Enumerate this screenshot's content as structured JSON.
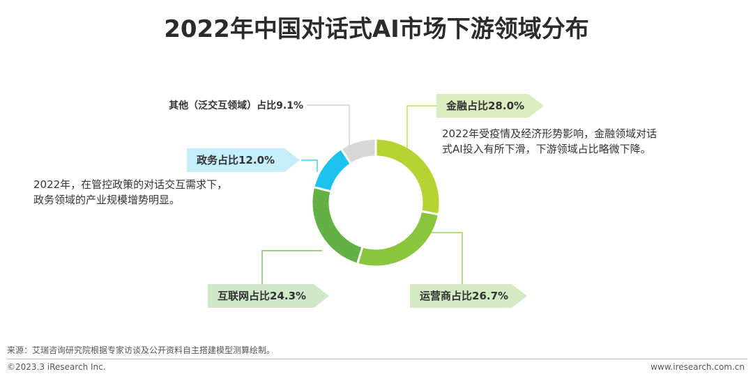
{
  "title": "2022年中国对话式AI市场下游领域分布",
  "chart_data": {
    "type": "pie",
    "donut": true,
    "title": "2022年中国对话式AI市场下游领域分布",
    "unit": "%",
    "slices": [
      {
        "name": "金融",
        "value": 28.0,
        "label": "金融占比28.0%",
        "color": "#b6d334",
        "callout_color": "#dcecc0"
      },
      {
        "name": "运营商",
        "value": 26.7,
        "label": "运营商占比26.7%",
        "color": "#8ac53e",
        "callout_color": "#d3eac4"
      },
      {
        "name": "互联网",
        "value": 24.3,
        "label": "互联网占比24.3%",
        "color": "#63b044",
        "callout_color": "#d0e8c8"
      },
      {
        "name": "政务",
        "value": 12.0,
        "label": "政务占比12.0%",
        "color": "#1bc3ee",
        "callout_color": "#c4eefa"
      },
      {
        "name": "其他（泛交互领域）",
        "value": 9.1,
        "label": "其他（泛交互领域）占比9.1%",
        "color": "#d7d7d7",
        "callout_color": ""
      }
    ]
  },
  "annotations": {
    "finance_line1": "2022年受疫情及经济形势影响，金融领域对话",
    "finance_line2": "式AI投入有所下滑，下游领域占比略微下降。",
    "gov_line1": "2022年，在管控政策的对话交互需求下，",
    "gov_line2": "政务领域的产业规模增势明显。"
  },
  "footer": {
    "source": "来源：艾瑞咨询研究院根据专家访谈及公开资料自主搭建模型测算绘制。",
    "copyright": "©2023.3 iResearch Inc.",
    "website": "www.iresearch.com.cn"
  }
}
